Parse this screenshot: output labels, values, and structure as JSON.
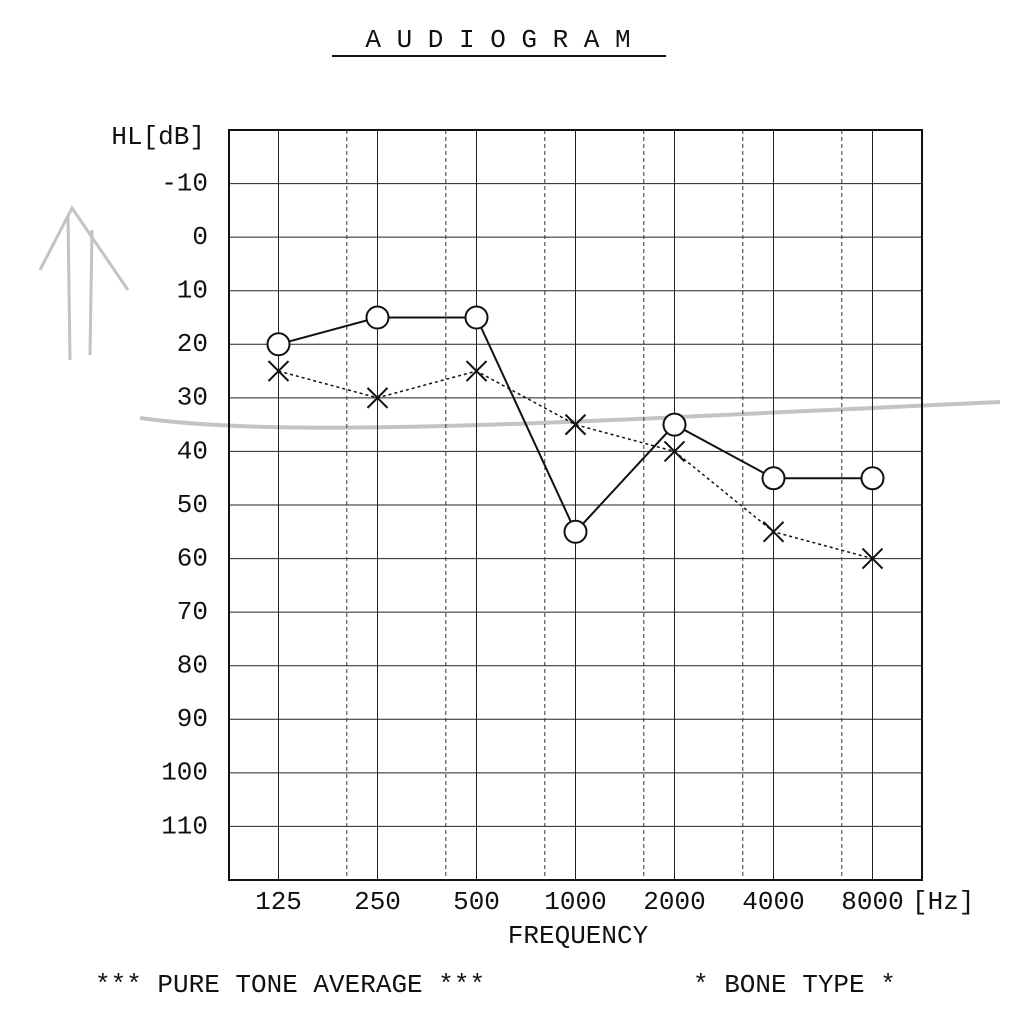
{
  "chart_data": {
    "type": "line",
    "title": "A U D I O G R A M",
    "ylabel": "HL[dB]",
    "xlabel": "FREQUENCY",
    "xunit": "[Hz]",
    "categories": [
      "125",
      "250",
      "500",
      "1000",
      "2000",
      "4000",
      "8000"
    ],
    "series": [
      {
        "values": [
          20,
          15,
          15,
          55,
          35,
          45,
          45
        ],
        "color": "#111111",
        "marker": "circle",
        "dash": false
      },
      {
        "values": [
          25,
          30,
          25,
          35,
          40,
          55,
          60
        ],
        "color": "#111111",
        "marker": "x",
        "dash": true
      }
    ],
    "ylim": [
      -20,
      120
    ],
    "yticks": [
      -10,
      0,
      10,
      20,
      30,
      40,
      50,
      60,
      70,
      80,
      90,
      100,
      110
    ],
    "inverted": true,
    "grid": true,
    "footer": [
      "*** PURE TONE AVERAGE ***",
      "* BONE TYPE *"
    ]
  }
}
